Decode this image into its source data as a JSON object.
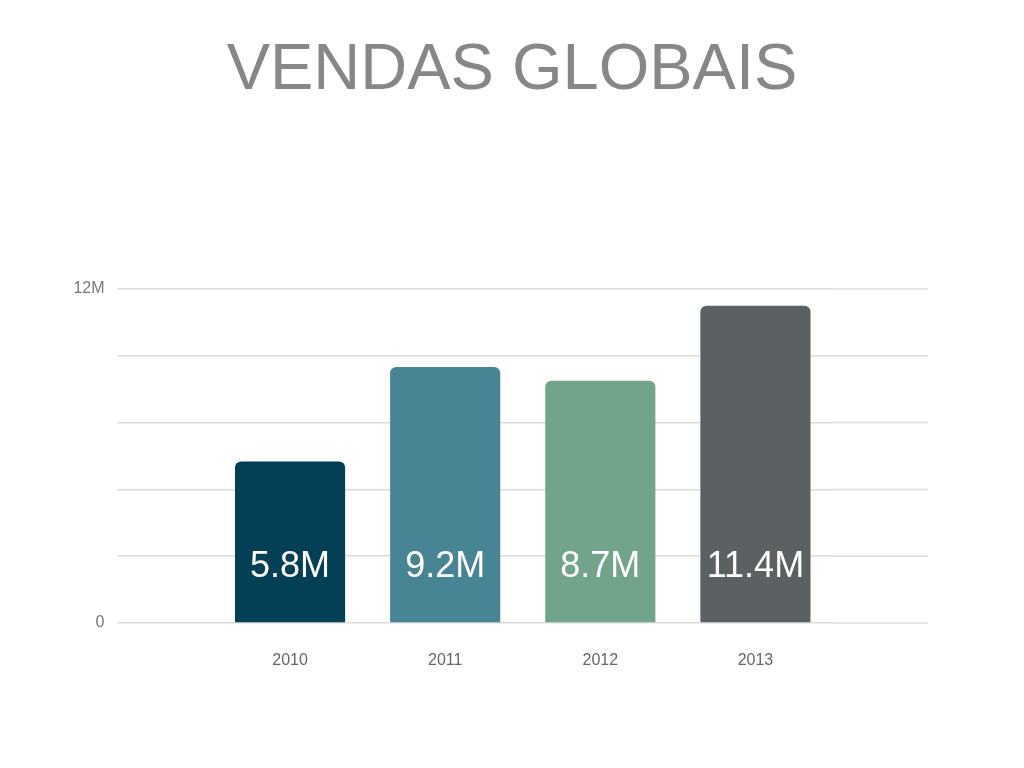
{
  "chart_data": {
    "type": "bar",
    "title": "VENDAS GLOBAIS",
    "categories": [
      "2010",
      "2011",
      "2012",
      "2013"
    ],
    "values": [
      5.8,
      9.2,
      8.7,
      11.4
    ],
    "colors": [
      "#033f55",
      "#478494",
      "#72a48b",
      "#5b6063"
    ],
    "value_labels": [
      "5.8M",
      "9.2M",
      "8.7M",
      "11.4M"
    ],
    "ylim": [
      0,
      12
    ],
    "yticks": [
      0,
      {
        "value": 2.4,
        "label": null
      },
      {
        "value": 4.8,
        "label": null
      },
      {
        "value": 7.2,
        "label": null
      },
      {
        "value": 9.6,
        "label": null
      },
      {
        "value": 12,
        "label": "12M"
      }
    ],
    "grid": "y"
  }
}
